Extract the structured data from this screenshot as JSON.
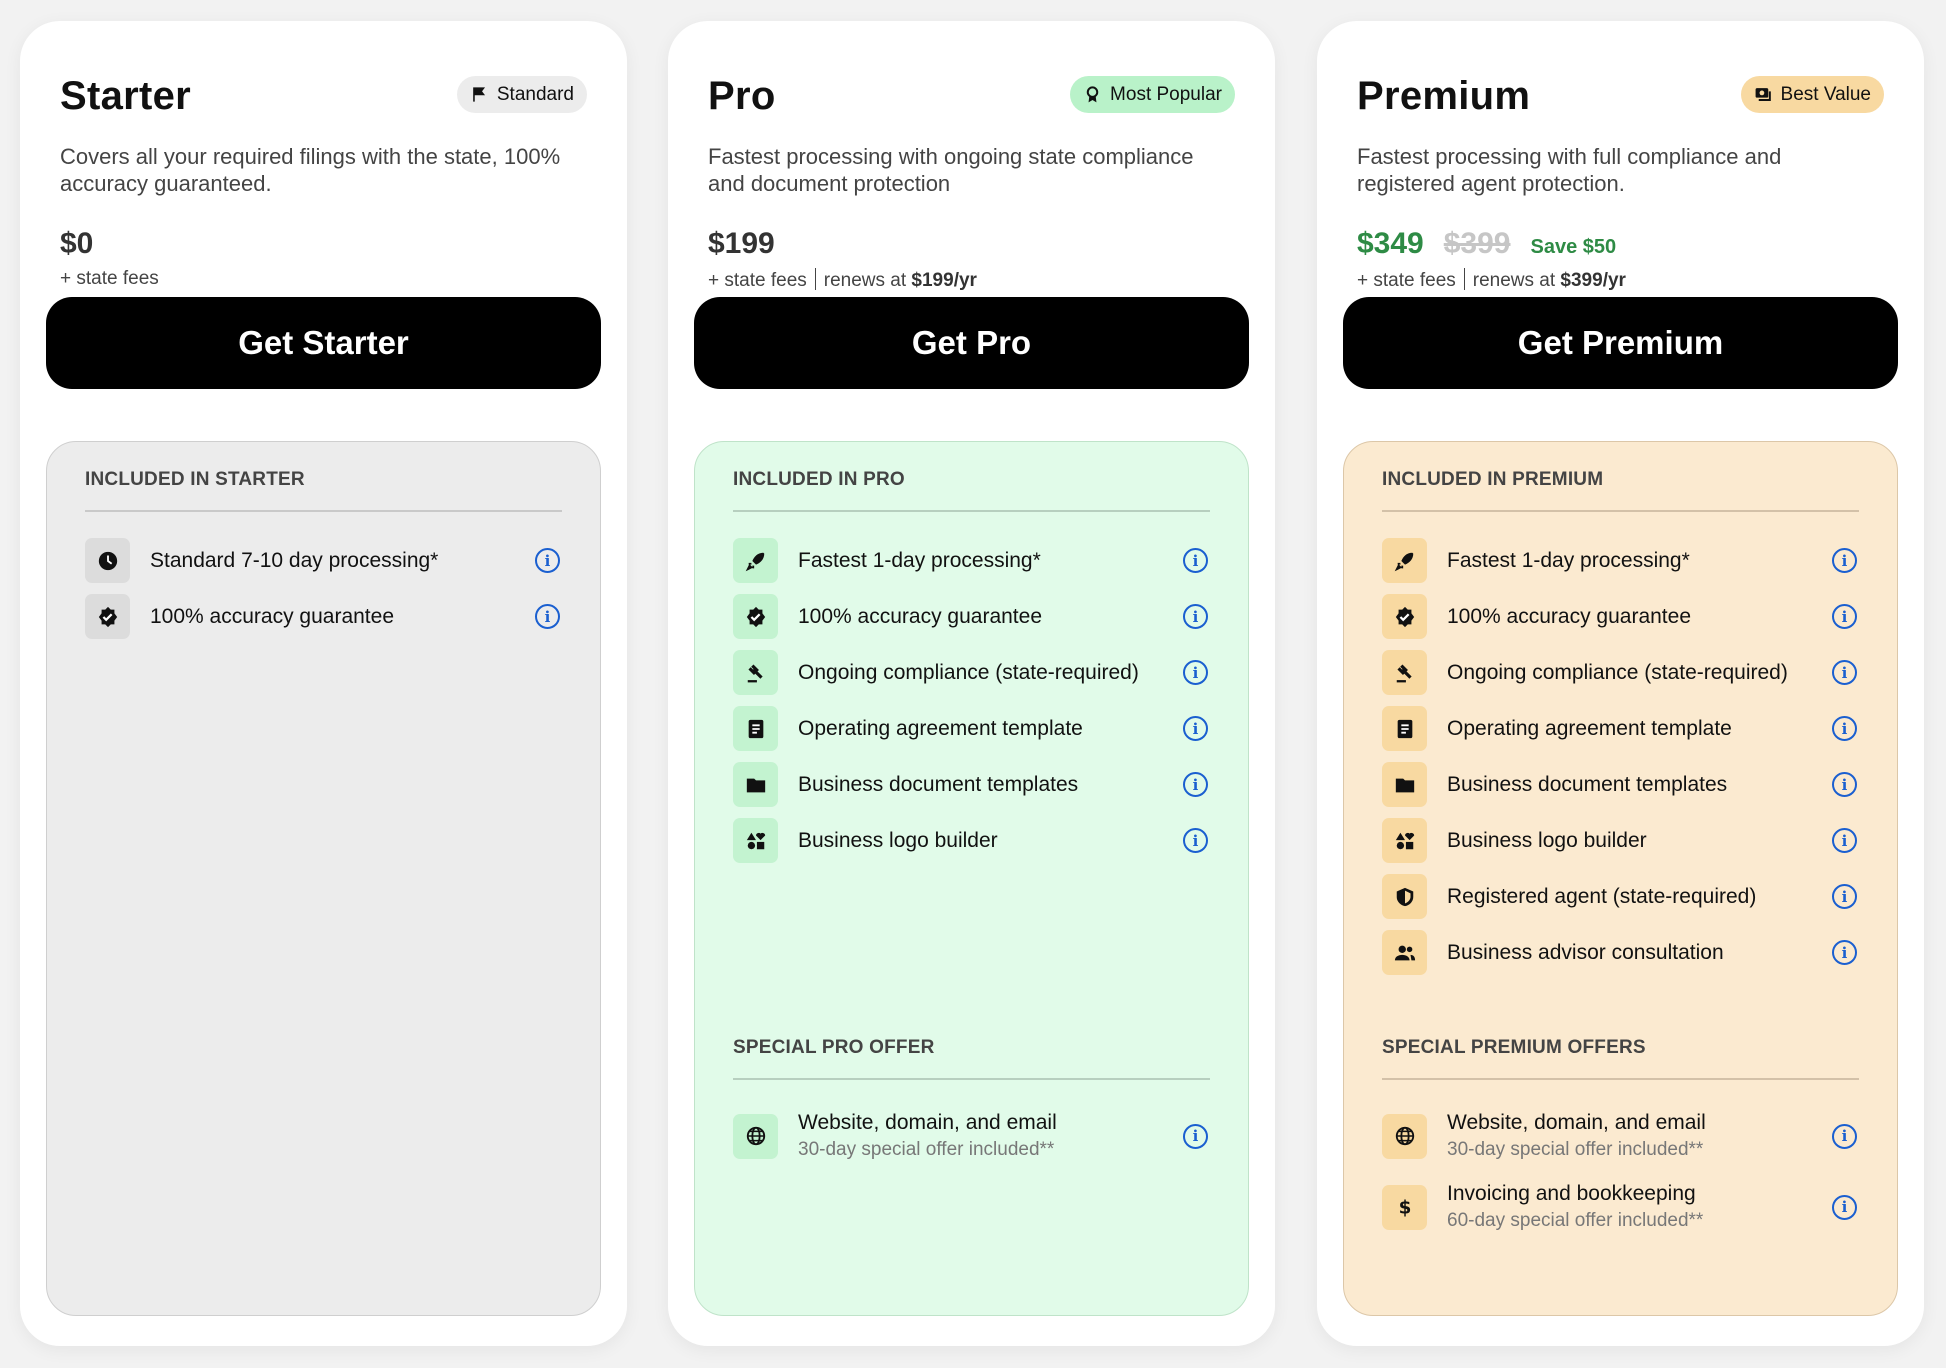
{
  "plans": [
    {
      "id": "starter",
      "title": "Starter",
      "badge": {
        "label": "Standard",
        "icon": "flag-icon",
        "bg": "#ececec"
      },
      "description": "Covers all your required filings with the state, 100% accuracy guaranteed.",
      "price": "$0",
      "price_color": "#333",
      "old_price": null,
      "save": null,
      "fees": "+ state fees",
      "renews_prefix": null,
      "renews_amount": null,
      "cta": "Get Starter",
      "panel": {
        "bg": "#ececec",
        "border": "#cfcfcf",
        "divider": "#c9c9c9",
        "icon_bg": "#dcdcdc"
      },
      "included_header": "INCLUDED IN STARTER",
      "features": [
        {
          "icon": "clock-icon",
          "label": "Standard 7-10 day processing*"
        },
        {
          "icon": "verified-badge-icon",
          "label": "100% accuracy guarantee"
        }
      ],
      "offers_header": null,
      "offers": []
    },
    {
      "id": "pro",
      "title": "Pro",
      "badge": {
        "label": "Most Popular",
        "icon": "award-icon",
        "bg": "#b9f2c9"
      },
      "description": "Fastest processing with ongoing state compliance and document protection",
      "price": "$199",
      "price_color": "#333",
      "old_price": null,
      "save": null,
      "fees": "+ state fees",
      "renews_prefix": "renews at ",
      "renews_amount": "$199/yr",
      "cta": "Get Pro",
      "panel": {
        "bg": "#e1fbe9",
        "border": "#bfe3c9",
        "divider": "#b7cfbf",
        "icon_bg": "#c3f3d0"
      },
      "included_header": "INCLUDED IN PRO",
      "features": [
        {
          "icon": "rocket-icon",
          "label": "Fastest 1-day processing*"
        },
        {
          "icon": "verified-badge-icon",
          "label": "100% accuracy guarantee"
        },
        {
          "icon": "gavel-icon",
          "label": "Ongoing compliance (state-required)"
        },
        {
          "icon": "document-icon",
          "label": "Operating agreement template"
        },
        {
          "icon": "folder-icon",
          "label": "Business document templates"
        },
        {
          "icon": "shapes-icon",
          "label": "Business logo builder"
        }
      ],
      "offers_header": "SPECIAL PRO OFFER",
      "offers": [
        {
          "icon": "globe-icon",
          "label": "Website, domain, and email",
          "sub": "30-day special offer included**"
        }
      ]
    },
    {
      "id": "premium",
      "title": "Premium",
      "badge": {
        "label": "Best Value",
        "icon": "money-icon",
        "bg": "#f8d9a1"
      },
      "description": "Fastest processing with full compliance and registered agent protection.",
      "price": "$349",
      "price_color": "#2e8b45",
      "old_price": "$399",
      "save": "Save $50",
      "fees": "+ state fees",
      "renews_prefix": "renews at ",
      "renews_amount": "$399/yr",
      "cta": "Get Premium",
      "panel": {
        "bg": "#fbead0",
        "border": "#dcc7a8",
        "divider": "#d3c1a8",
        "icon_bg": "#f8d9a1"
      },
      "included_header": "INCLUDED IN PREMIUM",
      "features": [
        {
          "icon": "rocket-icon",
          "label": "Fastest 1-day processing*"
        },
        {
          "icon": "verified-badge-icon",
          "label": "100% accuracy guarantee"
        },
        {
          "icon": "gavel-icon",
          "label": "Ongoing compliance (state-required)"
        },
        {
          "icon": "document-icon",
          "label": "Operating agreement template"
        },
        {
          "icon": "folder-icon",
          "label": "Business document templates"
        },
        {
          "icon": "shapes-icon",
          "label": "Business logo builder"
        },
        {
          "icon": "shield-icon",
          "label": "Registered agent (state-required)"
        },
        {
          "icon": "people-icon",
          "label": "Business advisor consultation"
        }
      ],
      "offers_header": "SPECIAL PREMIUM OFFERS",
      "offers": [
        {
          "icon": "globe-icon",
          "label": "Website, domain, and email",
          "sub": "30-day special offer included**"
        },
        {
          "icon": "dollar-icon",
          "label": "Invoicing and bookkeeping",
          "sub": "60-day special offer included**"
        }
      ]
    }
  ],
  "info_icon": "info-icon",
  "info_color": "#1a5fd0"
}
